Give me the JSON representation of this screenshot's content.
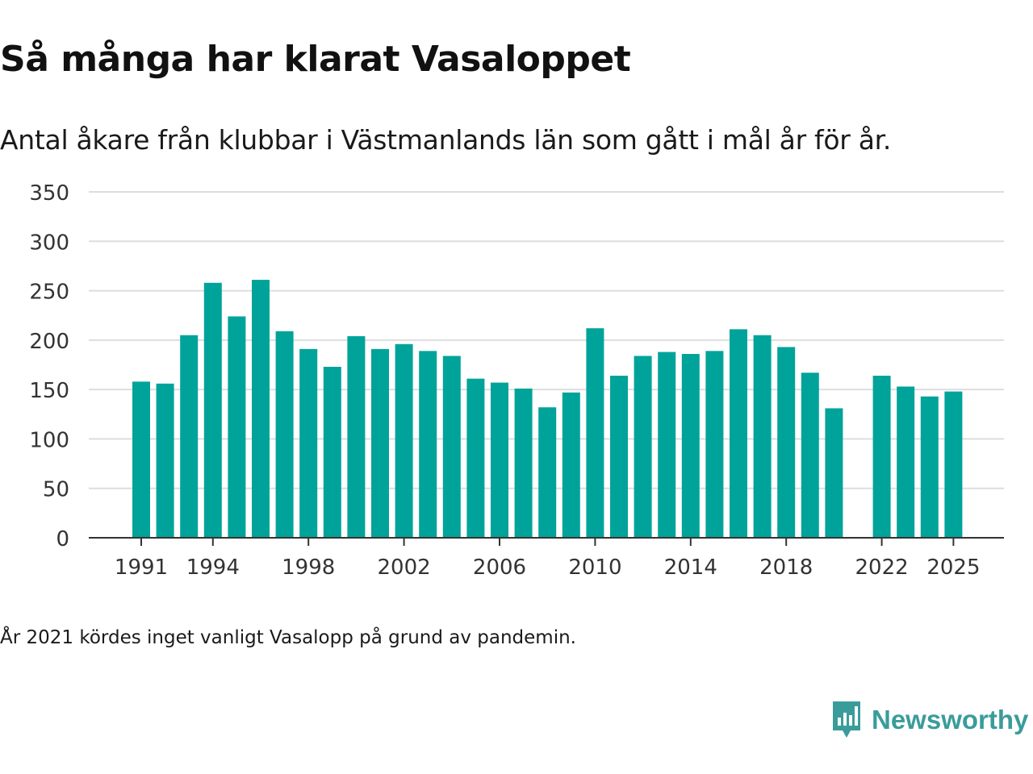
{
  "chart_data": {
    "type": "bar",
    "title": "Så många har klarat Vasaloppet",
    "subtitle": "Antal åkare från klubbar i Västmanlands län som gått i mål år för år.",
    "xlabel": "",
    "ylabel": "",
    "ylim": [
      0,
      350
    ],
    "yticks": [
      "0",
      "50",
      "100",
      "150",
      "200",
      "250",
      "300",
      "350"
    ],
    "xticks": [
      "1991",
      "1994",
      "1998",
      "2002",
      "2006",
      "2010",
      "2014",
      "2018",
      "2022",
      "2025"
    ],
    "categories": [
      "1991",
      "1992",
      "1993",
      "1994",
      "1995",
      "1996",
      "1997",
      "1998",
      "1999",
      "2000",
      "2001",
      "2002",
      "2003",
      "2004",
      "2005",
      "2006",
      "2007",
      "2008",
      "2009",
      "2010",
      "2011",
      "2012",
      "2013",
      "2014",
      "2015",
      "2016",
      "2017",
      "2018",
      "2019",
      "2020",
      "2021",
      "2022",
      "2023",
      "2024",
      "2025"
    ],
    "values": [
      158,
      156,
      205,
      258,
      224,
      261,
      209,
      191,
      173,
      204,
      191,
      196,
      189,
      184,
      161,
      157,
      151,
      132,
      147,
      212,
      164,
      184,
      188,
      186,
      189,
      211,
      205,
      193,
      167,
      131,
      null,
      164,
      153,
      143,
      148
    ],
    "grid": true,
    "bar_color": "#00a39a"
  },
  "footnote": "År 2021 kördes inget vanligt Vasalopp på grund av pandemin.",
  "brand": {
    "name": "Newsworthy",
    "color": "#3a9c9a",
    "icon": "newsworthy-logo-icon"
  }
}
